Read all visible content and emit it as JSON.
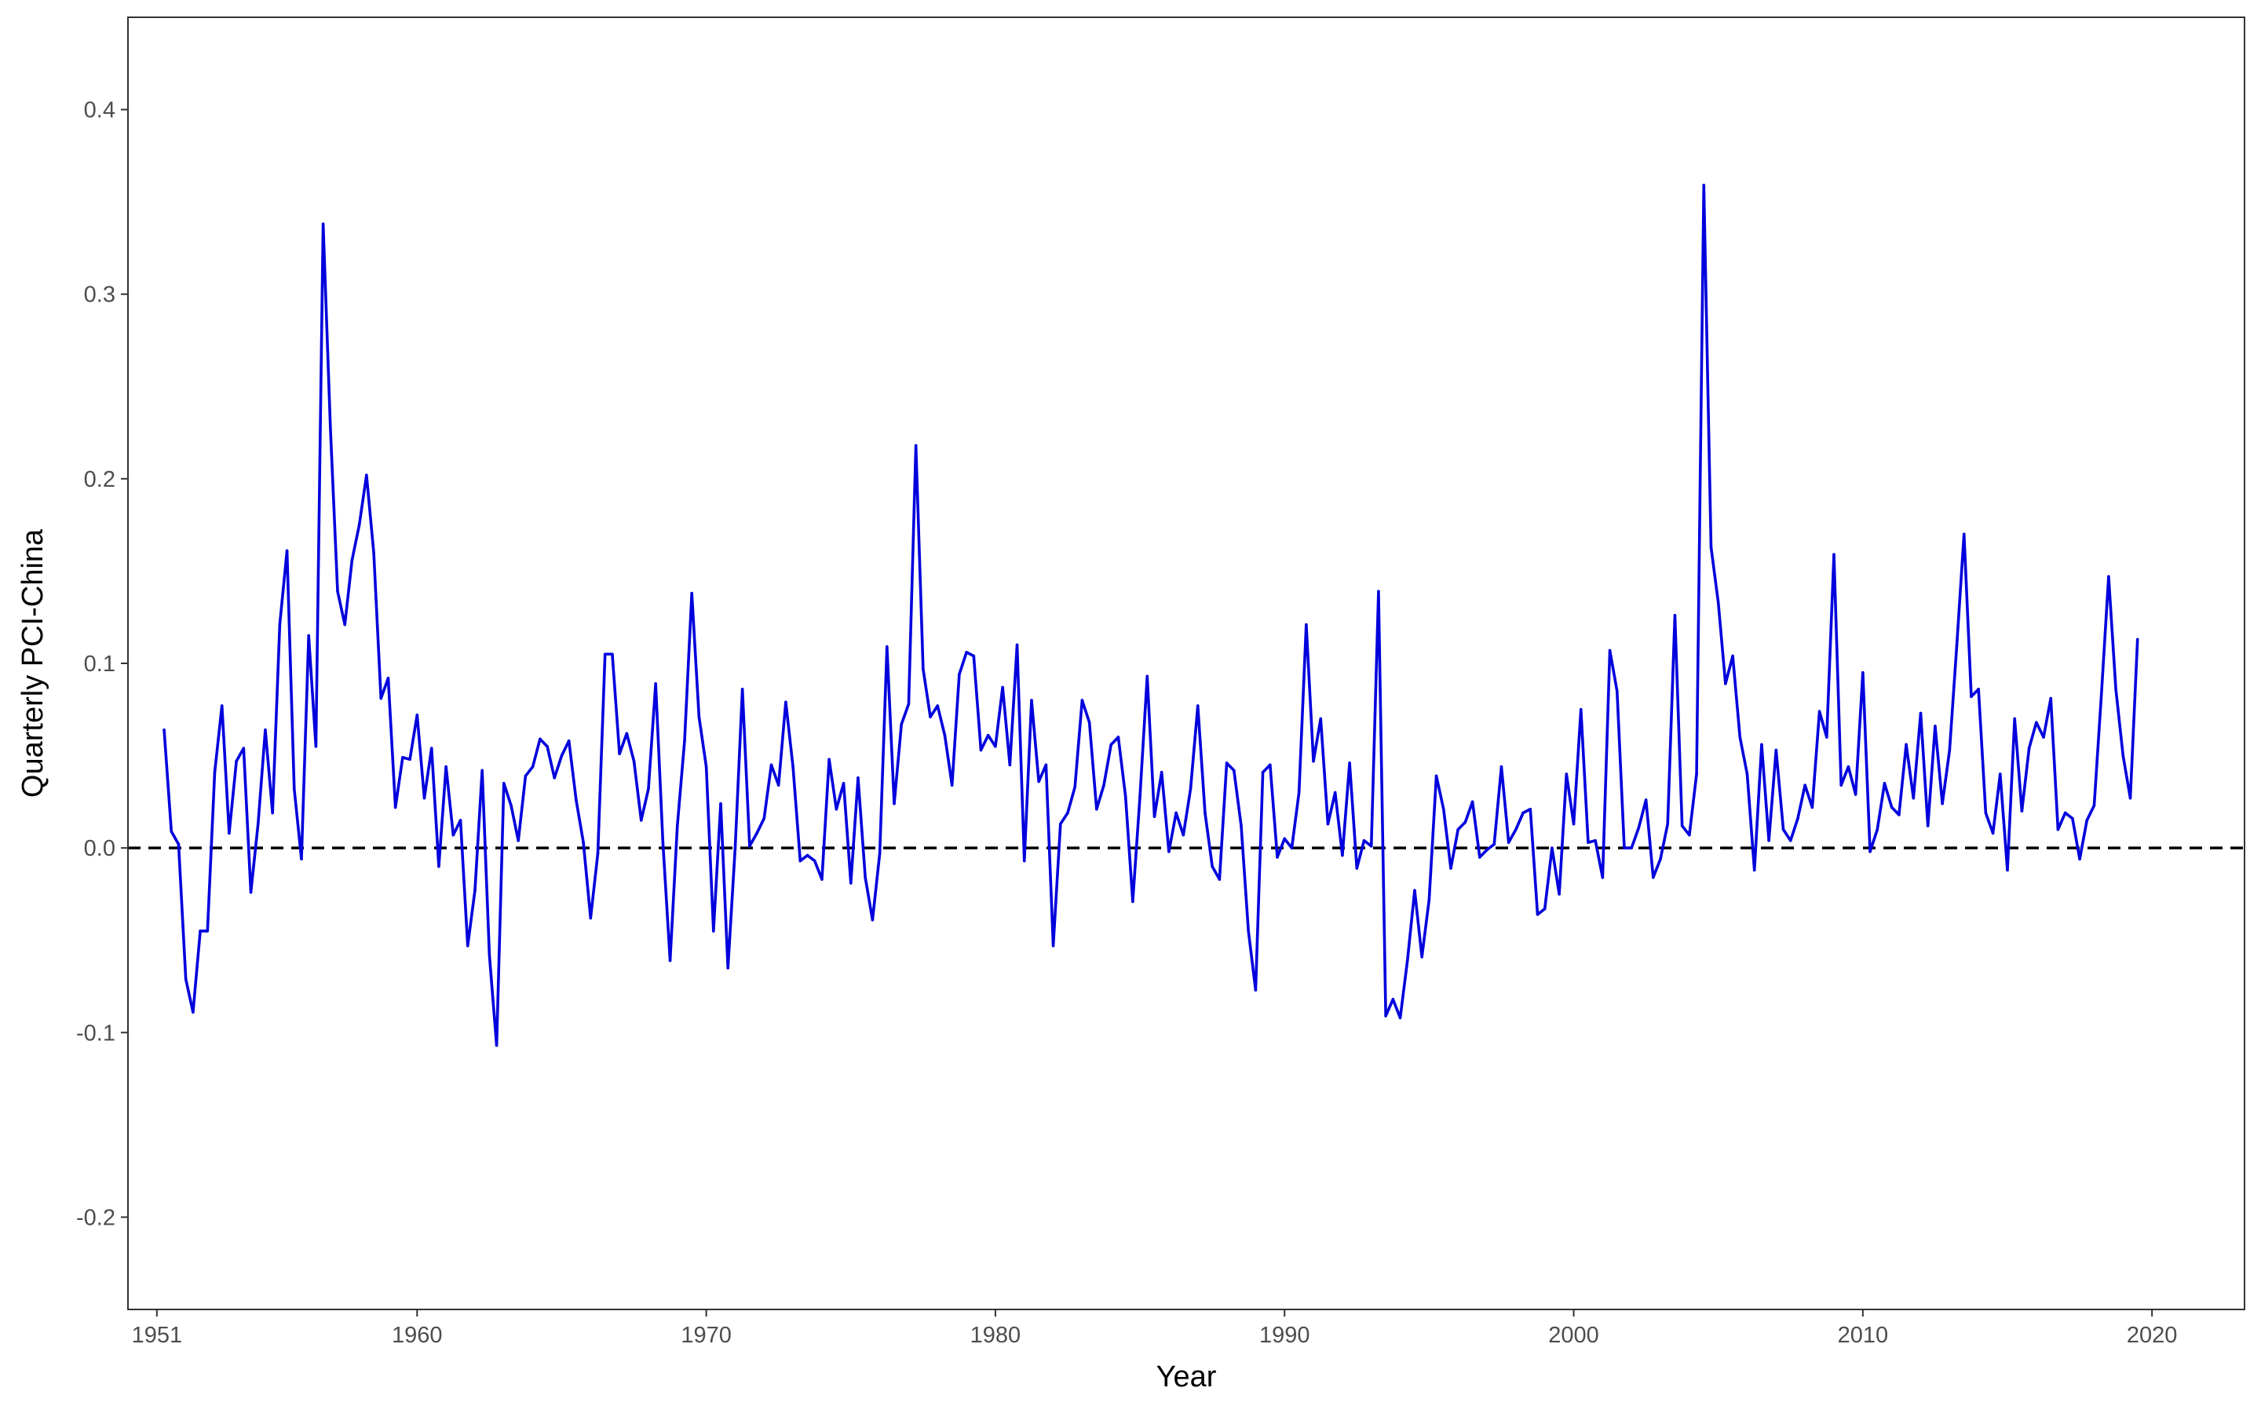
{
  "chart_data": {
    "type": "line",
    "title": "",
    "xlabel": "Year",
    "ylabel": "Quarterly PCI-China",
    "xlim": [
      1950.0,
      2023.2
    ],
    "ylim": [
      -0.25,
      0.45
    ],
    "x_ticks": [
      1951,
      1960,
      1970,
      1980,
      1990,
      2000,
      2010,
      2020
    ],
    "x_tick_labels": [
      "1951",
      "1960",
      "1970",
      "1980",
      "1990",
      "2000",
      "2010",
      "2020"
    ],
    "y_ticks": [
      -0.2,
      -0.1,
      0.0,
      0.1,
      0.2,
      0.3,
      0.4
    ],
    "y_tick_labels": [
      "-0.2",
      "-0.1",
      "0.0",
      "0.1",
      "0.2",
      "0.3",
      "0.4"
    ],
    "grid": false,
    "legend": "none",
    "reference_line": {
      "y": 0.0,
      "style": "dashed",
      "color": "#000000"
    },
    "colors": {
      "series": "#0000dd",
      "panel_border": "#333333"
    },
    "series": [
      {
        "x_start": 1951.25,
        "x_step": 0.25,
        "values": [
          0.064,
          0.009,
          0.002,
          -0.071,
          -0.089,
          -0.045,
          -0.045,
          0.041,
          0.077,
          0.008,
          0.047,
          0.054,
          -0.024,
          0.013,
          0.064,
          0.019,
          0.121,
          0.161,
          0.032,
          -0.006,
          0.115,
          0.055,
          0.338,
          0.228,
          0.139,
          0.121,
          0.156,
          0.175,
          0.202,
          0.16,
          0.081,
          0.092,
          0.022,
          0.049,
          0.048,
          0.072,
          0.027,
          0.054,
          -0.01,
          0.044,
          0.007,
          0.015,
          -0.053,
          -0.023,
          0.042,
          -0.058,
          -0.107,
          0.035,
          0.023,
          0.004,
          0.039,
          0.044,
          0.059,
          0.055,
          0.038,
          0.05,
          0.058,
          0.026,
          0.003,
          -0.038,
          -0.003,
          0.105,
          0.105,
          0.051,
          0.062,
          0.047,
          0.015,
          0.032,
          0.089,
          0.003,
          -0.061,
          0.012,
          0.058,
          0.138,
          0.071,
          0.044,
          -0.045,
          0.024,
          -0.065,
          0.0,
          0.086,
          0.001,
          0.008,
          0.016,
          0.045,
          0.034,
          0.079,
          0.044,
          -0.007,
          -0.004,
          -0.007,
          -0.017,
          0.048,
          0.021,
          0.035,
          -0.019,
          0.038,
          -0.016,
          -0.039,
          -0.003,
          0.109,
          0.024,
          0.067,
          0.078,
          0.218,
          0.097,
          0.071,
          0.077,
          0.061,
          0.034,
          0.094,
          0.106,
          0.104,
          0.053,
          0.061,
          0.055,
          0.087,
          0.045,
          0.11,
          -0.007,
          0.08,
          0.036,
          0.045,
          -0.053,
          0.013,
          0.019,
          0.033,
          0.08,
          0.068,
          0.021,
          0.034,
          0.056,
          0.06,
          0.028,
          -0.029,
          0.028,
          0.093,
          0.017,
          0.041,
          -0.002,
          0.019,
          0.007,
          0.032,
          0.077,
          0.019,
          -0.01,
          -0.017,
          0.046,
          0.042,
          0.012,
          -0.045,
          -0.077,
          0.041,
          0.045,
          -0.005,
          0.005,
          0.0,
          0.03,
          0.121,
          0.047,
          0.07,
          0.013,
          0.03,
          -0.004,
          0.046,
          -0.011,
          0.004,
          0.001,
          0.139,
          -0.091,
          -0.082,
          -0.092,
          -0.061,
          -0.023,
          -0.059,
          -0.028,
          0.039,
          0.021,
          -0.011,
          0.01,
          0.014,
          0.025,
          -0.005,
          -0.001,
          0.002,
          0.044,
          0.003,
          0.01,
          0.019,
          0.021,
          -0.036,
          -0.033,
          0.0,
          -0.025,
          0.04,
          0.013,
          0.075,
          0.003,
          0.004,
          -0.016,
          0.107,
          0.085,
          0.0,
          0.0,
          0.011,
          0.026,
          -0.016,
          -0.006,
          0.013,
          0.126,
          0.012,
          0.007,
          0.04,
          0.359,
          0.163,
          0.133,
          0.089,
          0.104,
          0.06,
          0.04,
          -0.012,
          0.056,
          0.004,
          0.053,
          0.01,
          0.004,
          0.016,
          0.034,
          0.022,
          0.074,
          0.06,
          0.159,
          0.034,
          0.044,
          0.029,
          0.095,
          -0.002,
          0.01,
          0.035,
          0.022,
          0.018,
          0.056,
          0.027,
          0.073,
          0.012,
          0.066,
          0.024,
          0.053,
          0.11,
          0.17,
          0.082,
          0.086,
          0.019,
          0.008,
          0.04,
          -0.012,
          0.07,
          0.02,
          0.054,
          0.068,
          0.06,
          0.081,
          0.01,
          0.019,
          0.016,
          -0.006,
          0.015,
          0.023,
          0.083,
          0.147,
          0.086,
          0.05,
          0.027,
          0.113
        ]
      }
    ]
  }
}
